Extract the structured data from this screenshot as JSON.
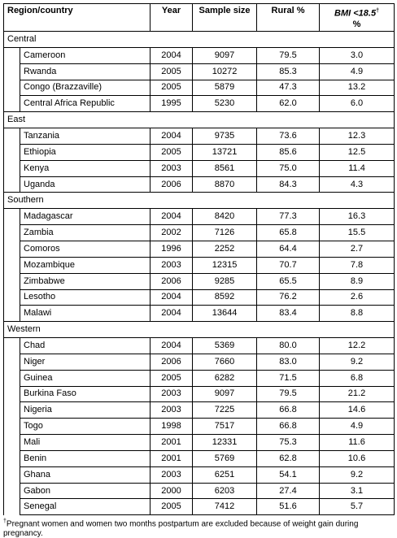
{
  "header": {
    "columns": [
      "Region/country",
      "Year",
      "Sample size",
      "Rural %"
    ],
    "bmi": {
      "label": "BMI <18.5",
      "mark": "†",
      "unit": "%"
    }
  },
  "sections": [
    {
      "name": "Central",
      "rows": [
        [
          "Cameroon",
          "2004",
          "9097",
          "79.5",
          "3.0"
        ],
        [
          "Rwanda",
          "2005",
          "10272",
          "85.3",
          "4.9"
        ],
        [
          "Congo (Brazzaville)",
          "2005",
          "5879",
          "47.3",
          "13.2"
        ],
        [
          "Central Africa Republic",
          "1995",
          "5230",
          "62.0",
          "6.0"
        ]
      ]
    },
    {
      "name": "East",
      "rows": [
        [
          "Tanzania",
          "2004",
          "9735",
          "73.6",
          "12.3"
        ],
        [
          "Ethiopia",
          "2005",
          "13721",
          "85.6",
          "12.5"
        ],
        [
          "Kenya",
          "2003",
          "8561",
          "75.0",
          "11.4"
        ],
        [
          "Uganda",
          "2006",
          "8870",
          "84.3",
          "4.3"
        ]
      ]
    },
    {
      "name": "Southern",
      "rows": [
        [
          "Madagascar",
          "2004",
          "8420",
          "77.3",
          "16.3"
        ],
        [
          "Zambia",
          "2002",
          "7126",
          "65.8",
          "15.5"
        ],
        [
          "Comoros",
          "1996",
          "2252",
          "64.4",
          "2.7"
        ],
        [
          "Mozambique",
          "2003",
          "12315",
          "70.7",
          "7.8"
        ],
        [
          "Zimbabwe",
          "2006",
          "9285",
          "65.5",
          "8.9"
        ],
        [
          "Lesotho",
          "2004",
          "8592",
          "76.2",
          "2.6"
        ],
        [
          "Malawi",
          "2004",
          "13644",
          "83.4",
          "8.8"
        ]
      ]
    },
    {
      "name": "Western",
      "rows": [
        [
          "Chad",
          "2004",
          "5369",
          "80.0",
          "12.2"
        ],
        [
          "Niger",
          "2006",
          "7660",
          "83.0",
          "9.2"
        ],
        [
          "Guinea",
          "2005",
          "6282",
          "71.5",
          "6.8"
        ],
        [
          "Burkina Faso",
          "2003",
          "9097",
          "79.5",
          "21.2"
        ],
        [
          "Nigeria",
          "2003",
          "7225",
          "66.8",
          "14.6"
        ],
        [
          "Togo",
          "1998",
          "7517",
          "66.8",
          "4.9"
        ],
        [
          "Mali",
          "2001",
          "12331",
          "75.3",
          "11.6"
        ],
        [
          "Benin",
          "2001",
          "5769",
          "62.8",
          "10.6"
        ],
        [
          "Ghana",
          "2003",
          "6251",
          "54.1",
          "9.2"
        ],
        [
          "Gabon",
          "2000",
          "6203",
          "27.4",
          "3.1"
        ],
        [
          "Senegal",
          "2005",
          "7412",
          "51.6",
          "5.7"
        ]
      ]
    }
  ],
  "footnote": {
    "mark": "†",
    "text": "Pregnant women and women two months postpartum are excluded because of weight gain during pregnancy."
  }
}
